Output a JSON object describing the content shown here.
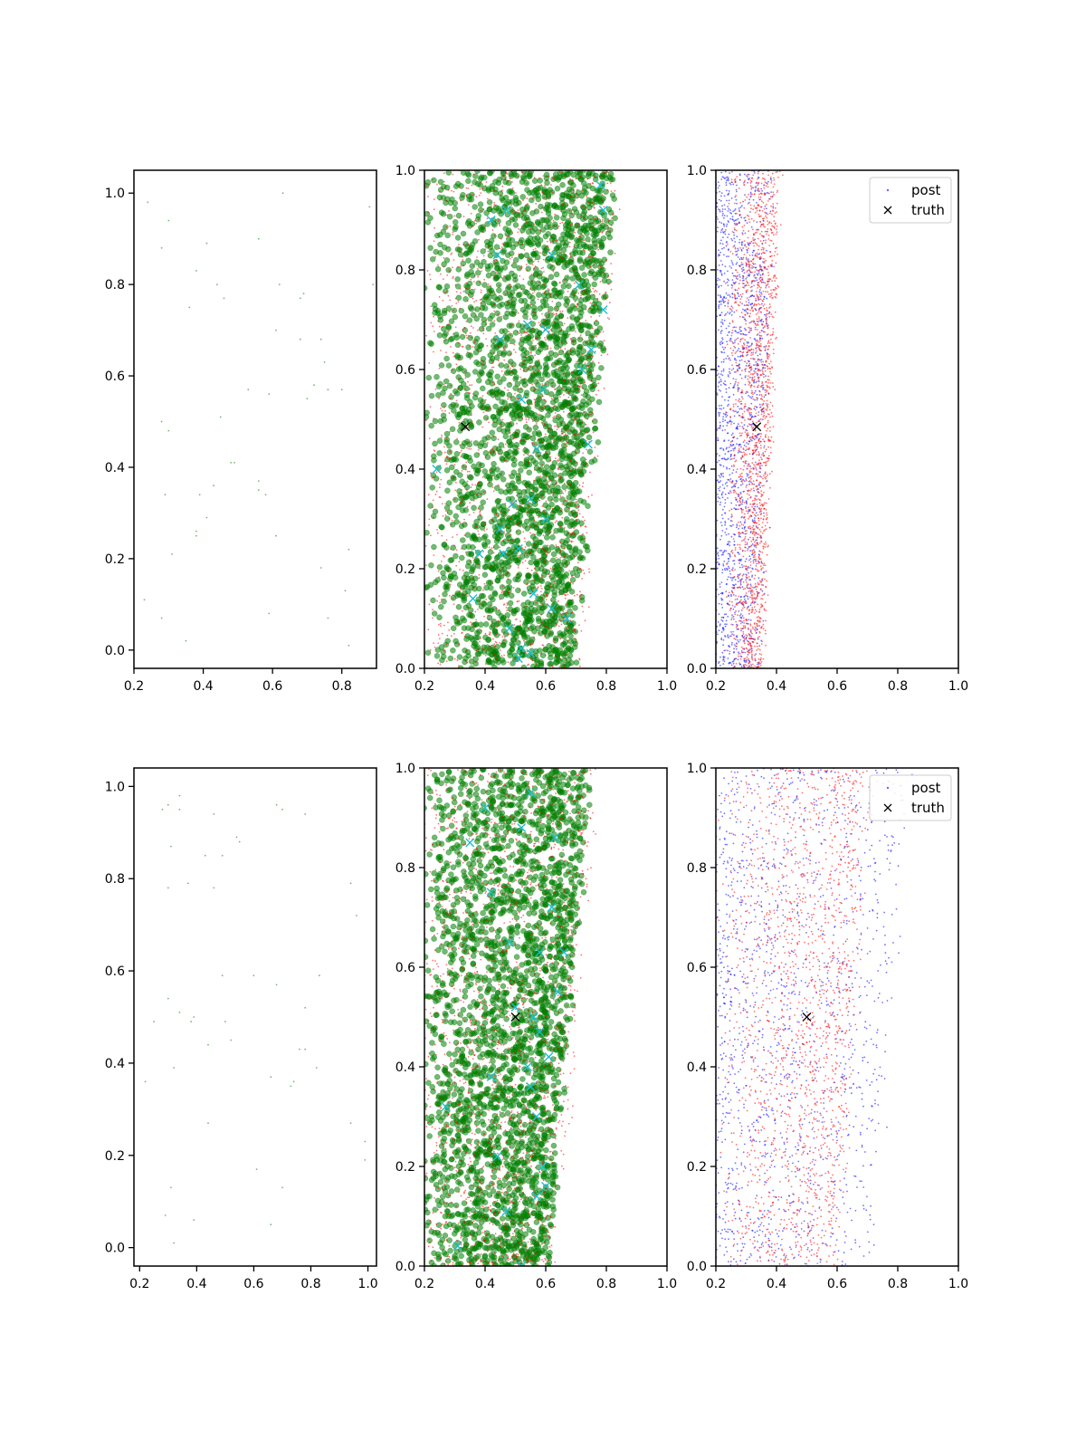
{
  "figure": {
    "colors": {
      "green": "#008000",
      "red": "#ff0000",
      "blue": "#0000ff",
      "cyan": "#17becf",
      "black": "#000000"
    }
  },
  "chart_data": [
    {
      "type": "scatter",
      "panel": "top-left",
      "xlim": [
        0.2,
        0.9
      ],
      "ylim": [
        -0.04,
        1.05
      ],
      "xticks": [
        "0.2",
        "0.4",
        "0.6",
        "0.8"
      ],
      "yticks": [
        "0.0",
        "0.2",
        "0.4",
        "0.6",
        "0.8",
        "1.0"
      ],
      "xtick_values": [
        0.2,
        0.4,
        0.6,
        0.8
      ],
      "ytick_values": [
        0.0,
        0.2,
        0.4,
        0.6,
        0.8,
        1.0
      ],
      "series": [
        {
          "color": "#008000",
          "marker": "point",
          "points": [
            [
              0.24,
              0.98
            ],
            [
              0.3,
              0.94
            ],
            [
              0.28,
              0.88
            ],
            [
              0.41,
              0.89
            ],
            [
              0.56,
              0.9
            ],
            [
              0.63,
              1.0
            ],
            [
              0.88,
              0.97
            ],
            [
              0.89,
              0.8
            ],
            [
              0.38,
              0.83
            ],
            [
              0.36,
              0.75
            ],
            [
              0.44,
              0.8
            ],
            [
              0.46,
              0.77
            ],
            [
              0.62,
              0.8
            ],
            [
              0.69,
              0.78
            ],
            [
              0.68,
              0.77
            ],
            [
              0.61,
              0.7
            ],
            [
              0.68,
              0.68
            ],
            [
              0.74,
              0.68
            ],
            [
              0.75,
              0.63
            ],
            [
              0.72,
              0.58
            ],
            [
              0.76,
              0.57
            ],
            [
              0.8,
              0.57
            ],
            [
              0.7,
              0.55
            ],
            [
              0.59,
              0.56
            ],
            [
              0.53,
              0.57
            ],
            [
              0.45,
              0.51
            ],
            [
              0.28,
              0.5
            ],
            [
              0.3,
              0.48
            ],
            [
              0.48,
              0.41
            ],
            [
              0.49,
              0.41
            ],
            [
              0.56,
              0.37
            ],
            [
              0.56,
              0.35
            ],
            [
              0.58,
              0.34
            ],
            [
              0.43,
              0.36
            ],
            [
              0.39,
              0.34
            ],
            [
              0.29,
              0.34
            ],
            [
              0.41,
              0.29
            ],
            [
              0.38,
              0.26
            ],
            [
              0.38,
              0.25
            ],
            [
              0.61,
              0.25
            ],
            [
              0.31,
              0.21
            ],
            [
              0.74,
              0.18
            ],
            [
              0.82,
              0.22
            ],
            [
              0.23,
              0.11
            ],
            [
              0.28,
              0.07
            ],
            [
              0.59,
              0.08
            ],
            [
              0.76,
              0.07
            ],
            [
              0.81,
              0.13
            ],
            [
              0.35,
              0.02
            ],
            [
              0.82,
              0.01
            ]
          ]
        }
      ]
    },
    {
      "type": "scatter",
      "panel": "top-middle",
      "xlim": [
        0.2,
        1.0
      ],
      "ylim": [
        0.0,
        1.0
      ],
      "xticks": [
        "0.2",
        "0.4",
        "0.6",
        "0.8",
        "1.0"
      ],
      "yticks": [
        "0.0",
        "0.2",
        "0.4",
        "0.6",
        "0.8",
        "1.0"
      ],
      "xtick_values": [
        0.2,
        0.4,
        0.6,
        0.8,
        1.0
      ],
      "ytick_values": [
        0.0,
        0.2,
        0.4,
        0.6,
        0.8,
        1.0
      ],
      "series": [
        {
          "color": "#008000",
          "marker": "circle",
          "distribution": {
            "count": 2600,
            "y_range": [
              0.0,
              1.0
            ],
            "x_min": 0.2,
            "edge_at_y0": 0.68,
            "edge_at_y1": 0.82,
            "fuzz": 0.03,
            "density_bias": 1.6
          }
        },
        {
          "color": "#ff0000",
          "marker": "point",
          "distribution": {
            "count": 1800,
            "y_range": [
              0.0,
              1.0
            ],
            "x_min": 0.2,
            "edge_at_y0": 0.7,
            "edge_at_y1": 0.84,
            "fuzz": 0.03,
            "density_bias": 1.3
          }
        },
        {
          "color": "#17becf",
          "marker": "x",
          "points": [
            [
              0.24,
              0.4
            ],
            [
              0.42,
              0.9
            ],
            [
              0.44,
              0.83
            ],
            [
              0.47,
              0.92
            ],
            [
              0.78,
              0.97
            ],
            [
              0.79,
              0.92
            ],
            [
              0.62,
              0.83
            ],
            [
              0.71,
              0.77
            ],
            [
              0.79,
              0.72
            ],
            [
              0.54,
              0.69
            ],
            [
              0.6,
              0.68
            ],
            [
              0.75,
              0.64
            ],
            [
              0.45,
              0.66
            ],
            [
              0.52,
              0.54
            ],
            [
              0.59,
              0.56
            ],
            [
              0.72,
              0.6
            ],
            [
              0.74,
              0.45
            ],
            [
              0.57,
              0.44
            ],
            [
              0.49,
              0.33
            ],
            [
              0.55,
              0.34
            ],
            [
              0.45,
              0.28
            ],
            [
              0.6,
              0.3
            ],
            [
              0.38,
              0.23
            ],
            [
              0.46,
              0.23
            ],
            [
              0.51,
              0.24
            ],
            [
              0.36,
              0.14
            ],
            [
              0.56,
              0.15
            ],
            [
              0.62,
              0.12
            ],
            [
              0.48,
              0.08
            ],
            [
              0.52,
              0.04
            ],
            [
              0.55,
              0.03
            ],
            [
              0.67,
              0.1
            ],
            [
              0.51,
              0.02
            ]
          ]
        },
        {
          "color": "#000000",
          "marker": "x",
          "points": [
            [
              0.335,
              0.485
            ]
          ]
        }
      ]
    },
    {
      "type": "scatter",
      "panel": "top-right",
      "xlim": [
        0.2,
        1.0
      ],
      "ylim": [
        0.0,
        1.0
      ],
      "xticks": [
        "0.2",
        "0.4",
        "0.6",
        "0.8",
        "1.0"
      ],
      "yticks": [
        "0.0",
        "0.2",
        "0.4",
        "0.6",
        "0.8",
        "1.0"
      ],
      "xtick_values": [
        0.2,
        0.4,
        0.6,
        0.8,
        1.0
      ],
      "ytick_values": [
        0.0,
        0.2,
        0.4,
        0.6,
        0.8,
        1.0
      ],
      "legend": {
        "placement": "upper right",
        "entries": [
          "post",
          "truth"
        ]
      },
      "series": [
        {
          "name": "post",
          "color": "#0000ff",
          "marker": "point",
          "distribution": {
            "count": 1600,
            "y_range": [
              0.0,
              1.0
            ],
            "x_min": 0.2,
            "edge_at_y0": 0.34,
            "edge_at_y1": 0.38,
            "fuzz": 0.02,
            "density_bias": 0.8
          }
        },
        {
          "color": "#ff0000",
          "marker": "point",
          "distribution": {
            "count": 1700,
            "y_range": [
              0.0,
              1.0
            ],
            "x_min": 0.24,
            "edge_at_y0": 0.35,
            "edge_at_y1": 0.41,
            "fuzz": 0.015,
            "density_bias": 1.6
          }
        },
        {
          "name": "truth",
          "color": "#000000",
          "marker": "x",
          "points": [
            [
              0.335,
              0.485
            ]
          ]
        }
      ]
    },
    {
      "type": "scatter",
      "panel": "bottom-left",
      "xlim": [
        0.18,
        1.03
      ],
      "ylim": [
        -0.04,
        1.04
      ],
      "xticks": [
        "0.2",
        "0.4",
        "0.6",
        "0.8",
        "1.0"
      ],
      "yticks": [
        "0.0",
        "0.2",
        "0.4",
        "0.6",
        "0.8",
        "1.0"
      ],
      "xtick_values": [
        0.2,
        0.4,
        0.6,
        0.8,
        1.0
      ],
      "ytick_values": [
        0.0,
        0.2,
        0.4,
        0.6,
        0.8,
        1.0
      ],
      "series": [
        {
          "color": "#008000",
          "marker": "point",
          "points": [
            [
              0.34,
              0.98
            ],
            [
              0.28,
              0.95
            ],
            [
              0.3,
              0.96
            ],
            [
              0.34,
              0.95
            ],
            [
              0.46,
              0.94
            ],
            [
              0.68,
              0.96
            ],
            [
              0.7,
              0.95
            ],
            [
              0.78,
              0.94
            ],
            [
              0.31,
              0.87
            ],
            [
              0.43,
              0.85
            ],
            [
              0.49,
              0.85
            ],
            [
              0.54,
              0.89
            ],
            [
              0.55,
              0.88
            ],
            [
              0.3,
              0.78
            ],
            [
              0.37,
              0.79
            ],
            [
              0.46,
              0.78
            ],
            [
              0.94,
              0.79
            ],
            [
              0.96,
              0.72
            ],
            [
              0.49,
              0.59
            ],
            [
              0.6,
              0.59
            ],
            [
              0.68,
              0.57
            ],
            [
              0.83,
              0.59
            ],
            [
              0.3,
              0.54
            ],
            [
              0.34,
              0.51
            ],
            [
              0.38,
              0.49
            ],
            [
              0.39,
              0.5
            ],
            [
              0.44,
              0.44
            ],
            [
              0.5,
              0.49
            ],
            [
              0.52,
              0.45
            ],
            [
              0.25,
              0.49
            ],
            [
              0.78,
              0.52
            ],
            [
              0.76,
              0.43
            ],
            [
              0.78,
              0.43
            ],
            [
              0.82,
              0.39
            ],
            [
              0.32,
              0.39
            ],
            [
              0.66,
              0.37
            ],
            [
              0.73,
              0.35
            ],
            [
              0.74,
              0.36
            ],
            [
              0.22,
              0.36
            ],
            [
              0.44,
              0.27
            ],
            [
              0.94,
              0.27
            ],
            [
              0.99,
              0.23
            ],
            [
              0.99,
              0.19
            ],
            [
              0.61,
              0.17
            ],
            [
              0.31,
              0.13
            ],
            [
              0.7,
              0.13
            ],
            [
              0.29,
              0.07
            ],
            [
              0.39,
              0.06
            ],
            [
              0.66,
              0.05
            ],
            [
              0.32,
              0.01
            ]
          ]
        }
      ]
    },
    {
      "type": "scatter",
      "panel": "bottom-middle",
      "xlim": [
        0.2,
        1.0
      ],
      "ylim": [
        0.0,
        1.0
      ],
      "xticks": [
        "0.2",
        "0.4",
        "0.6",
        "0.8",
        "1.0"
      ],
      "yticks": [
        "0.0",
        "0.2",
        "0.4",
        "0.6",
        "0.8",
        "1.0"
      ],
      "xtick_values": [
        0.2,
        0.4,
        0.6,
        0.8,
        1.0
      ],
      "ytick_values": [
        0.0,
        0.2,
        0.4,
        0.6,
        0.8,
        1.0
      ],
      "series": [
        {
          "color": "#008000",
          "marker": "circle",
          "distribution": {
            "count": 2600,
            "y_range": [
              0.0,
              1.0
            ],
            "x_min": 0.2,
            "edge_at_y0": 0.6,
            "edge_at_y1": 0.74,
            "fuzz": 0.025,
            "density_bias": 1.4
          }
        },
        {
          "color": "#ff0000",
          "marker": "point",
          "distribution": {
            "count": 1800,
            "y_range": [
              0.0,
              1.0
            ],
            "x_min": 0.2,
            "edge_at_y0": 0.62,
            "edge_at_y1": 0.76,
            "fuzz": 0.03,
            "density_bias": 1.2
          }
        },
        {
          "color": "#17becf",
          "marker": "x",
          "points": [
            [
              0.27,
              0.32
            ],
            [
              0.31,
              0.04
            ],
            [
              0.35,
              0.85
            ],
            [
              0.4,
              0.92
            ],
            [
              0.42,
              0.75
            ],
            [
              0.42,
              0.38
            ],
            [
              0.48,
              0.65
            ],
            [
              0.5,
              0.52
            ],
            [
              0.52,
              0.88
            ],
            [
              0.55,
              0.95
            ],
            [
              0.58,
              0.63
            ],
            [
              0.62,
              0.72
            ],
            [
              0.63,
              0.86
            ],
            [
              0.66,
              0.63
            ],
            [
              0.58,
              0.47
            ],
            [
              0.55,
              0.36
            ],
            [
              0.57,
              0.3
            ],
            [
              0.6,
              0.16
            ],
            [
              0.57,
              0.14
            ],
            [
              0.54,
              0.4
            ],
            [
              0.59,
              0.2
            ],
            [
              0.44,
              0.22
            ],
            [
              0.47,
              0.11
            ],
            [
              0.52,
              0.0
            ],
            [
              0.64,
              0.55
            ],
            [
              0.56,
              0.5
            ],
            [
              0.61,
              0.42
            ]
          ]
        },
        {
          "color": "#000000",
          "marker": "x",
          "points": [
            [
              0.5,
              0.5
            ]
          ]
        }
      ]
    },
    {
      "type": "scatter",
      "panel": "bottom-right",
      "xlim": [
        0.2,
        1.0
      ],
      "ylim": [
        0.0,
        1.0
      ],
      "xticks": [
        "0.2",
        "0.4",
        "0.6",
        "0.8",
        "1.0"
      ],
      "yticks": [
        "0.0",
        "0.2",
        "0.4",
        "0.6",
        "0.8",
        "1.0"
      ],
      "xtick_values": [
        0.2,
        0.4,
        0.6,
        0.8,
        1.0
      ],
      "ytick_values": [
        0.0,
        0.2,
        0.4,
        0.6,
        0.8,
        1.0
      ],
      "legend": {
        "placement": "upper right",
        "entries": [
          "post",
          "truth"
        ]
      },
      "series": [
        {
          "name": "post",
          "color": "#0000ff",
          "marker": "point",
          "distribution": {
            "count": 1500,
            "y_range": [
              0.0,
              1.0
            ],
            "x_min": 0.2,
            "edge_at_y0": 0.7,
            "edge_at_y1": 0.84,
            "fuzz": 0.03,
            "density_bias": 0.7
          }
        },
        {
          "color": "#ff0000",
          "marker": "point",
          "distribution": {
            "count": 1600,
            "y_range": [
              0.0,
              1.0
            ],
            "x_min": 0.22,
            "edge_at_y0": 0.6,
            "edge_at_y1": 0.7,
            "fuzz": 0.03,
            "density_bias": 1.5
          }
        },
        {
          "name": "truth",
          "color": "#000000",
          "marker": "x",
          "points": [
            [
              0.5,
              0.5
            ]
          ]
        }
      ]
    }
  ]
}
